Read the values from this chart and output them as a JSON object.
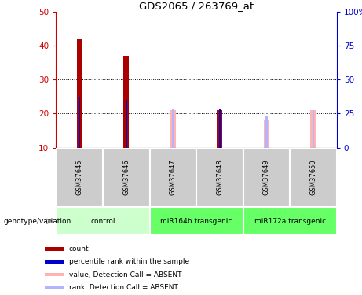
{
  "title": "GDS2065 / 263769_at",
  "samples": [
    "GSM37645",
    "GSM37646",
    "GSM37647",
    "GSM37648",
    "GSM37649",
    "GSM37650"
  ],
  "count_values": [
    42,
    37,
    null,
    21,
    null,
    null
  ],
  "percentile_values": [
    25,
    24,
    null,
    21.5,
    null,
    null
  ],
  "absent_value_values": [
    null,
    null,
    21,
    21,
    18,
    21
  ],
  "absent_rank_values": [
    null,
    null,
    21.5,
    21.5,
    19.5,
    21
  ],
  "groups": [
    {
      "label": "control",
      "cols": [
        0,
        1
      ]
    },
    {
      "label": "miR164b transgenic",
      "cols": [
        2,
        3
      ]
    },
    {
      "label": "miR172a transgenic",
      "cols": [
        4,
        5
      ]
    }
  ],
  "ylim_left": [
    10,
    50
  ],
  "ylim_right": [
    0,
    100
  ],
  "yticks_left": [
    10,
    20,
    30,
    40,
    50
  ],
  "yticks_right": [
    0,
    25,
    50,
    75,
    100
  ],
  "yticklabels_right": [
    "0",
    "25",
    "50",
    "75",
    "100%"
  ],
  "count_color": "#aa0000",
  "percentile_color": "#0000cc",
  "absent_value_color": "#ffb3b3",
  "absent_rank_color": "#b3b3ff",
  "grid_color": "black",
  "axis_color_left": "#cc0000",
  "axis_color_right": "#0000cc",
  "sample_box_color": "#cccccc",
  "group_color_light": "#ccffcc",
  "group_color_dark": "#66ff66",
  "bar_wide": 0.12,
  "bar_thin": 0.04
}
